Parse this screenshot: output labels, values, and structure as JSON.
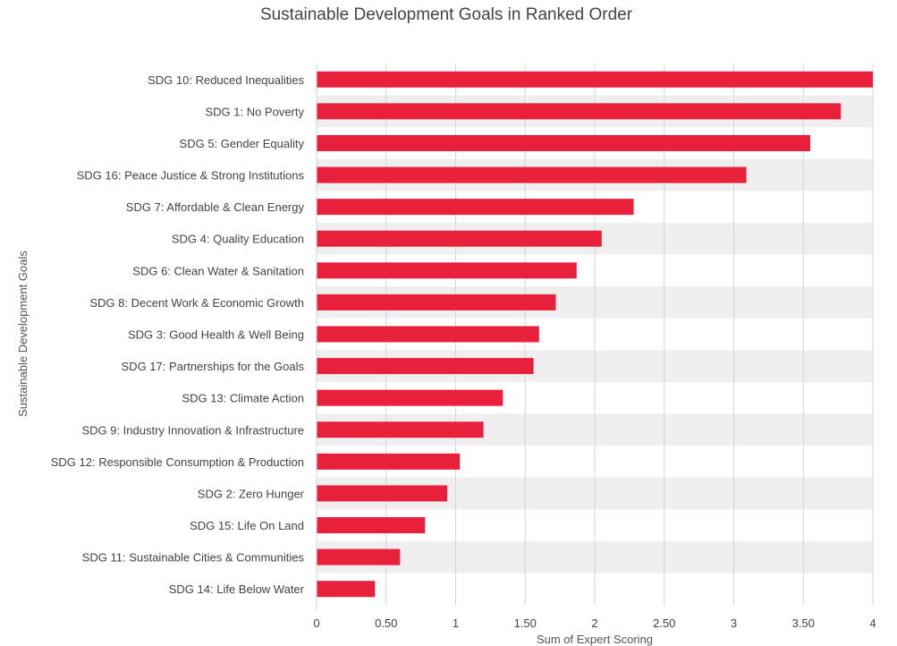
{
  "chart_data": {
    "type": "bar",
    "orientation": "horizontal",
    "title": "Sustainable Development Goals in Ranked Order",
    "xlabel": "Sum of Expert Scoring",
    "ylabel": "Sustainable Development Goals",
    "xlim": [
      0,
      4
    ],
    "x_ticks": [
      "0",
      "0.50",
      "1",
      "1.50",
      "2",
      "2.50",
      "3",
      "3.50",
      "4"
    ],
    "grid": true,
    "legend": "none",
    "colors": {
      "bar": "#e8203b",
      "band": "#efefef",
      "grid": "#d6d6d6",
      "text": "#444444"
    },
    "categories": [
      "SDG 10: Reduced Inequalities",
      "SDG 1: No Poverty",
      "SDG 5: Gender Equality",
      "SDG 16: Peace Justice & Strong Institutions",
      "SDG 7: Affordable & Clean Energy",
      "SDG 4: Quality Education",
      "SDG 6: Clean Water & Sanitation",
      "SDG 8: Decent Work & Economic Growth",
      "SDG 3: Good Health & Well Being",
      "SDG 17: Partnerships for the Goals",
      "SDG 13: Climate Action",
      "SDG 9: Industry Innovation & Infrastructure",
      "SDG 12: Responsible Consumption & Production",
      "SDG 2: Zero Hunger",
      "SDG 15: Life On Land",
      "SDG 11: Sustainable Cities & Communities",
      "SDG 14: Life Below Water"
    ],
    "values": [
      4.0,
      3.77,
      3.55,
      3.09,
      2.28,
      2.05,
      1.87,
      1.72,
      1.6,
      1.56,
      1.34,
      1.2,
      1.03,
      0.94,
      0.78,
      0.6,
      0.42
    ]
  }
}
